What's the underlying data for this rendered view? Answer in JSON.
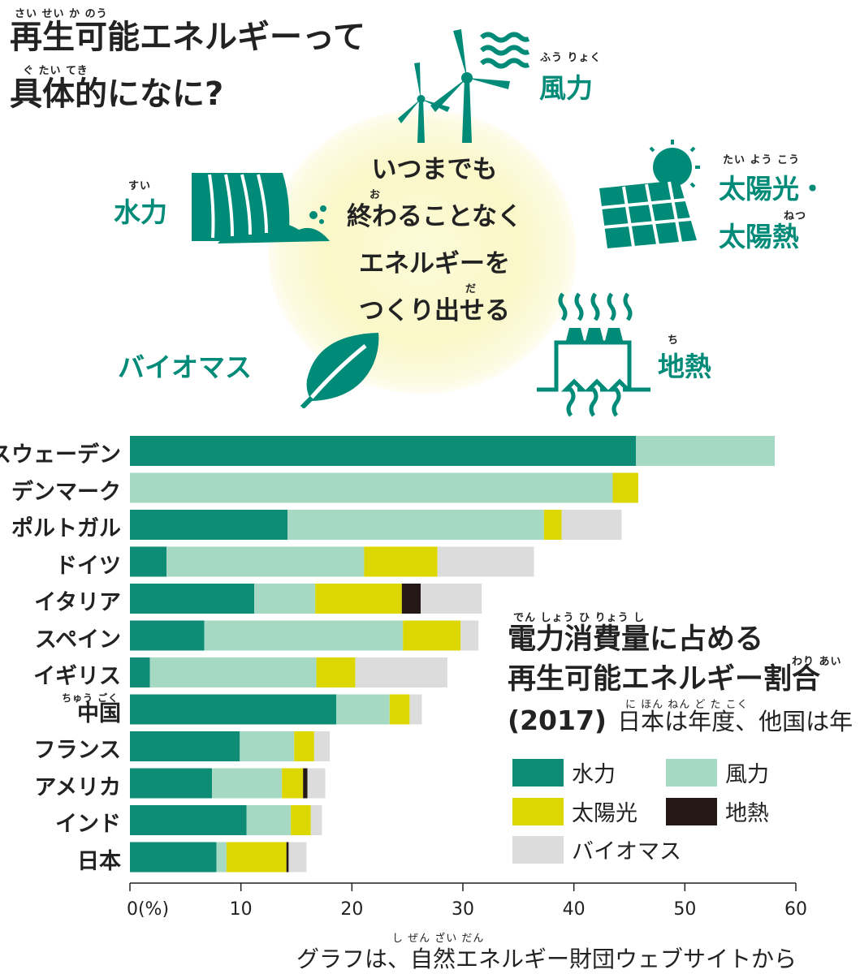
{
  "headline": {
    "line1": "再生可能エネルギーって",
    "line2": "具体的になに?",
    "ruby1": "さい  せい   か    のう",
    "ruby2": "ぐ   たい  てき"
  },
  "center_message": {
    "line1": "いつまでも",
    "line2": "終わることなく",
    "line3": "エネルギーを",
    "line4": "つくり出せる",
    "ruby_o": "お",
    "ruby_da": "だ"
  },
  "categories": {
    "wind": {
      "label": "風力",
      "ruby": "ふう りょく",
      "icon": "wind-turbine-icon"
    },
    "solar": {
      "label1": "太陽光・",
      "label2": "太陽熱",
      "ruby1": "たい  よう  こう",
      "ruby2": "ねつ",
      "icon": "solar-panel-icon"
    },
    "hydro": {
      "label": "水力",
      "ruby": "すい",
      "icon": "waterfall-icon"
    },
    "biomass": {
      "label": "バイオマス",
      "icon": "leaf-icon"
    },
    "geothermal": {
      "label": "地熱",
      "ruby": "ち",
      "icon": "geothermal-plant-icon"
    }
  },
  "panel": {
    "title1": "電力消費量に占める",
    "title2": "再生可能エネルギー割合",
    "year": "(2017)",
    "note": "日本は年度、他国は年",
    "ruby1": "でん        しょう ひ  りょう        し",
    "ruby2": "わり あい",
    "ruby3": "に ほん      ねん  ど     た  こく"
  },
  "source": "グラフは、自然エネルギー財団ウェブサイトから",
  "source_ruby": "し  ぜん                                 ざい だん",
  "colors": {
    "hydro": "#0e8c76",
    "wind": "#a6d9c4",
    "solar": "#dcd700",
    "geothermal": "#231815",
    "biomass": "#dcdcdc",
    "accent": "#008a78"
  },
  "chart_data": {
    "type": "bar",
    "orientation": "horizontal",
    "stacked": true,
    "categories": [
      "スウェーデン",
      "デンマーク",
      "ポルトガル",
      "ドイツ",
      "イタリア",
      "スペイン",
      "イギリス",
      "中国",
      "フランス",
      "アメリカ",
      "インド",
      "日本"
    ],
    "category_ruby": {
      "中国": "ちゅう ごく"
    },
    "series": [
      {
        "name": "水力",
        "values": [
          45.6,
          0,
          14.2,
          3.3,
          11.2,
          6.7,
          1.8,
          18.6,
          9.9,
          7.4,
          10.5,
          7.8
        ]
      },
      {
        "name": "風力",
        "values": [
          12.5,
          43.5,
          23.1,
          17.8,
          5.5,
          17.9,
          15.0,
          4.8,
          4.9,
          6.3,
          4.0,
          0.9
        ]
      },
      {
        "name": "太陽光",
        "values": [
          0,
          2.3,
          1.6,
          6.6,
          7.8,
          5.2,
          3.5,
          1.8,
          1.8,
          1.9,
          1.8,
          5.4
        ]
      },
      {
        "name": "地熱",
        "values": [
          0,
          0,
          0,
          0,
          1.7,
          0,
          0,
          0,
          0,
          0.4,
          0,
          0.2
        ]
      },
      {
        "name": "バイオマス",
        "values": [
          0,
          0,
          5.4,
          8.7,
          5.5,
          1.6,
          8.3,
          1.1,
          1.4,
          1.6,
          1.0,
          1.6
        ]
      }
    ],
    "xlim": [
      0,
      60
    ],
    "xticks": [
      0,
      10,
      20,
      30,
      40,
      50,
      60
    ],
    "xtick_labels": [
      "0(%)",
      "10",
      "20",
      "30",
      "40",
      "50",
      "60"
    ],
    "legend": [
      "水力",
      "風力",
      "太陽光",
      "地熱",
      "バイオマス"
    ]
  }
}
